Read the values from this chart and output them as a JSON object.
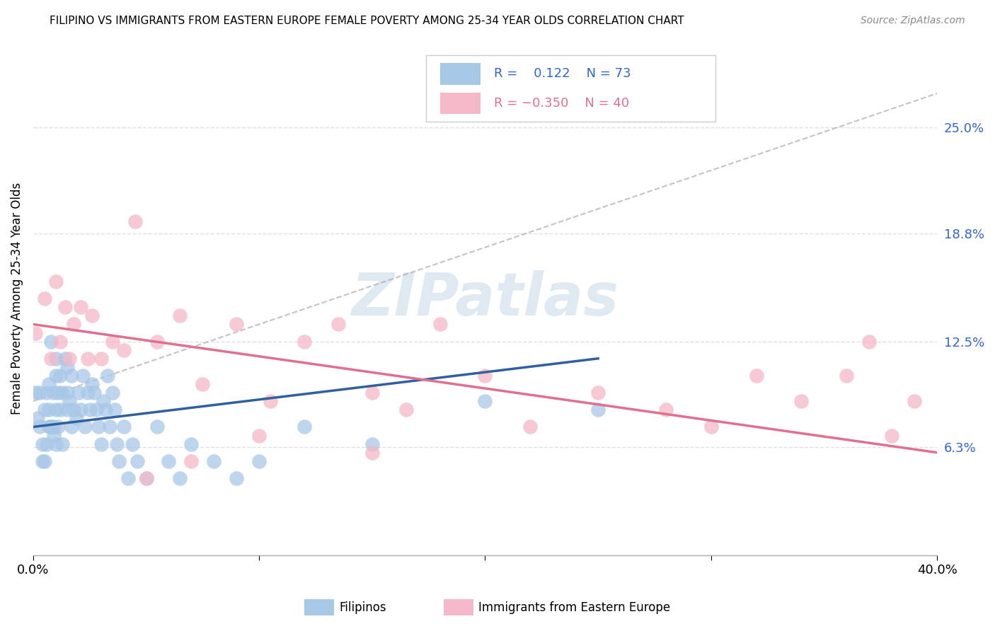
{
  "title": "FILIPINO VS IMMIGRANTS FROM EASTERN EUROPE FEMALE POVERTY AMONG 25-34 YEAR OLDS CORRELATION CHART",
  "source": "Source: ZipAtlas.com",
  "ylabel": "Female Poverty Among 25-34 Year Olds",
  "xlim": [
    0.0,
    0.4
  ],
  "ylim": [
    0.0,
    0.3
  ],
  "yticks": [
    0.063,
    0.125,
    0.188,
    0.25
  ],
  "ytick_labels": [
    "6.3%",
    "12.5%",
    "18.8%",
    "25.0%"
  ],
  "xticks": [
    0.0,
    0.1,
    0.2,
    0.3,
    0.4
  ],
  "xtick_labels_show": [
    "0.0%",
    "40.0%"
  ],
  "r_blue": 0.122,
  "n_blue": 73,
  "r_pink": -0.35,
  "n_pink": 40,
  "blue_color": "#A8C8E8",
  "pink_color": "#F4B8C8",
  "blue_line_color": "#3060A0",
  "pink_line_color": "#E07090",
  "dash_color": "#AAAAAA",
  "watermark": "ZIPatlas",
  "watermark_color": "#C5D8E8",
  "blue_line_x0": 0.0,
  "blue_line_y0": 0.075,
  "blue_line_x1": 0.25,
  "blue_line_y1": 0.115,
  "pink_line_x0": 0.0,
  "pink_line_x1": 0.4,
  "pink_line_y0": 0.135,
  "pink_line_y1": 0.06,
  "dash_line_x0": 0.0,
  "dash_line_y0": 0.09,
  "dash_line_x1": 0.4,
  "dash_line_y1": 0.27,
  "blue_scatter_x": [
    0.001,
    0.002,
    0.003,
    0.003,
    0.004,
    0.004,
    0.005,
    0.005,
    0.006,
    0.006,
    0.007,
    0.007,
    0.007,
    0.008,
    0.008,
    0.008,
    0.009,
    0.009,
    0.009,
    0.01,
    0.01,
    0.01,
    0.01,
    0.011,
    0.011,
    0.012,
    0.012,
    0.013,
    0.013,
    0.014,
    0.015,
    0.015,
    0.015,
    0.016,
    0.017,
    0.017,
    0.018,
    0.019,
    0.02,
    0.021,
    0.022,
    0.023,
    0.024,
    0.025,
    0.026,
    0.027,
    0.028,
    0.029,
    0.03,
    0.031,
    0.032,
    0.033,
    0.034,
    0.035,
    0.036,
    0.037,
    0.038,
    0.04,
    0.042,
    0.044,
    0.046,
    0.05,
    0.055,
    0.06,
    0.065,
    0.07,
    0.08,
    0.09,
    0.1,
    0.12,
    0.15,
    0.2,
    0.25
  ],
  "blue_scatter_y": [
    0.095,
    0.08,
    0.095,
    0.075,
    0.065,
    0.055,
    0.055,
    0.085,
    0.065,
    0.095,
    0.075,
    0.1,
    0.085,
    0.075,
    0.125,
    0.075,
    0.07,
    0.095,
    0.075,
    0.065,
    0.085,
    0.105,
    0.115,
    0.075,
    0.095,
    0.085,
    0.105,
    0.095,
    0.065,
    0.115,
    0.085,
    0.095,
    0.11,
    0.09,
    0.105,
    0.075,
    0.085,
    0.08,
    0.095,
    0.085,
    0.105,
    0.075,
    0.095,
    0.085,
    0.1,
    0.095,
    0.085,
    0.075,
    0.065,
    0.09,
    0.085,
    0.105,
    0.075,
    0.095,
    0.085,
    0.065,
    0.055,
    0.075,
    0.045,
    0.065,
    0.055,
    0.045,
    0.075,
    0.055,
    0.045,
    0.065,
    0.055,
    0.045,
    0.055,
    0.075,
    0.065,
    0.09,
    0.085
  ],
  "pink_scatter_x": [
    0.001,
    0.005,
    0.008,
    0.01,
    0.012,
    0.014,
    0.016,
    0.018,
    0.021,
    0.024,
    0.026,
    0.03,
    0.035,
    0.04,
    0.045,
    0.055,
    0.065,
    0.075,
    0.09,
    0.105,
    0.12,
    0.135,
    0.15,
    0.165,
    0.18,
    0.2,
    0.22,
    0.25,
    0.28,
    0.3,
    0.32,
    0.34,
    0.36,
    0.37,
    0.38,
    0.39,
    0.15,
    0.1,
    0.07,
    0.05
  ],
  "pink_scatter_y": [
    0.13,
    0.15,
    0.115,
    0.16,
    0.125,
    0.145,
    0.115,
    0.135,
    0.145,
    0.115,
    0.14,
    0.115,
    0.125,
    0.12,
    0.195,
    0.125,
    0.14,
    0.1,
    0.135,
    0.09,
    0.125,
    0.135,
    0.095,
    0.085,
    0.135,
    0.105,
    0.075,
    0.095,
    0.085,
    0.075,
    0.105,
    0.09,
    0.105,
    0.125,
    0.07,
    0.09,
    0.06,
    0.07,
    0.055,
    0.045
  ]
}
